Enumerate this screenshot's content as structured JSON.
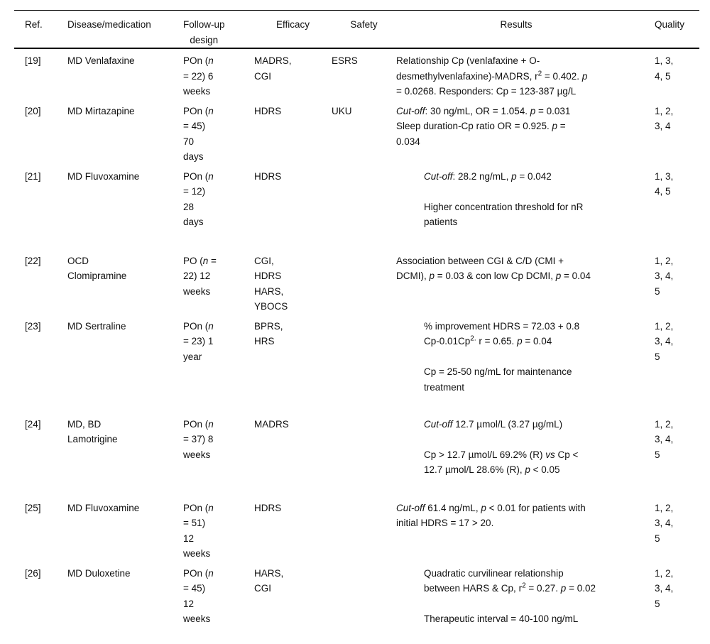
{
  "page": {
    "background_color": "#ffffff",
    "text_color": "#111111",
    "rule_color": "#000000"
  },
  "table": {
    "columns": [
      {
        "key": "ref",
        "lines": [
          "Ref."
        ]
      },
      {
        "key": "disease-medication",
        "lines": [
          "Disease/medication"
        ]
      },
      {
        "key": "followup-design",
        "lines": [
          "Follow-up",
          "design"
        ]
      },
      {
        "key": "efficacy",
        "lines": [
          "Efficacy"
        ]
      },
      {
        "key": "safety",
        "lines": [
          "Safety"
        ]
      },
      {
        "key": "results",
        "lines": [
          "Results"
        ]
      },
      {
        "key": "quality",
        "lines": [
          "Quality"
        ]
      }
    ],
    "rows": [
      {
        "ref": "[19]",
        "disease": [
          {
            "t": "MD Venlafaxine"
          }
        ],
        "followup": [
          {
            "t": "POn ("
          },
          {
            "t": "n",
            "i": true
          },
          {
            "br": true
          },
          {
            "t": "= 22) 6"
          },
          {
            "br": true
          },
          {
            "t": "weeks"
          }
        ],
        "efficacy": [
          {
            "t": "MADRS,"
          },
          {
            "br": true
          },
          {
            "t": "CGI"
          }
        ],
        "safety": [
          {
            "t": "ESRS"
          }
        ],
        "results": {
          "indent": false,
          "segs": [
            {
              "t": "Relationship Cp (venlafaxine + O-"
            },
            {
              "br": true
            },
            {
              "t": "desmethylvenlafaxine)-MADRS, r"
            },
            {
              "t": "2",
              "sup": true
            },
            {
              "t": " = 0.402. "
            },
            {
              "t": "p",
              "i": true
            },
            {
              "br": true
            },
            {
              "t": "= 0.0268. Responders: Cp = 123-387 µg/L"
            }
          ]
        },
        "quality": [
          {
            "t": "1, 3,"
          },
          {
            "br": true
          },
          {
            "t": "4, 5"
          }
        ]
      },
      {
        "ref": "[20]",
        "disease": [
          {
            "t": "MD Mirtazapine"
          }
        ],
        "followup": [
          {
            "t": "POn ("
          },
          {
            "t": "n",
            "i": true
          },
          {
            "br": true
          },
          {
            "t": "= 45)"
          },
          {
            "br": true
          },
          {
            "t": "70"
          },
          {
            "br": true
          },
          {
            "t": "days"
          }
        ],
        "efficacy": [
          {
            "t": "HDRS"
          }
        ],
        "safety": [
          {
            "t": "UKU"
          }
        ],
        "results": {
          "indent": false,
          "segs": [
            {
              "t": "Cut-off",
              "i": true
            },
            {
              "t": ": 30 ng/mL, OR = 1.054. "
            },
            {
              "t": "p",
              "i": true
            },
            {
              "t": " = 0.031"
            },
            {
              "br": true
            },
            {
              "t": "Sleep duration-Cp ratio OR = 0.925. "
            },
            {
              "t": "p",
              "i": true
            },
            {
              "t": " ="
            },
            {
              "br": true
            },
            {
              "t": "0.034"
            }
          ]
        },
        "quality": [
          {
            "t": "1, 2,"
          },
          {
            "br": true
          },
          {
            "t": "3, 4"
          }
        ]
      },
      {
        "ref": "[21]",
        "disease": [
          {
            "t": "MD Fluvoxamine"
          }
        ],
        "followup": [
          {
            "t": "POn ("
          },
          {
            "t": "n",
            "i": true
          },
          {
            "br": true
          },
          {
            "t": "= 12)"
          },
          {
            "br": true
          },
          {
            "t": "28"
          },
          {
            "br": true
          },
          {
            "t": "days"
          }
        ],
        "efficacy": [
          {
            "t": "HDRS"
          }
        ],
        "safety": [],
        "results": {
          "indent": true,
          "segs": [
            {
              "t": "Cut-off",
              "i": true
            },
            {
              "t": ": 28.2 ng/mL, "
            },
            {
              "t": "p",
              "i": true
            },
            {
              "t": " = 0.042"
            },
            {
              "br": true
            },
            {
              "br": true
            },
            {
              "t": "Higher concentration threshold for nR"
            },
            {
              "br": true
            },
            {
              "t": "patients"
            }
          ]
        },
        "quality": [
          {
            "t": "1, 3,"
          },
          {
            "br": true
          },
          {
            "t": "4, 5"
          }
        ]
      },
      {
        "ref": "[22]",
        "disease": [
          {
            "t": "OCD"
          },
          {
            "br": true
          },
          {
            "t": "Clomipramine"
          }
        ],
        "followup": [
          {
            "t": "PO ("
          },
          {
            "t": "n",
            "i": true
          },
          {
            "t": " ="
          },
          {
            "br": true
          },
          {
            "t": "22) 12"
          },
          {
            "br": true
          },
          {
            "t": "weeks"
          }
        ],
        "efficacy": [
          {
            "t": "CGI,"
          },
          {
            "br": true
          },
          {
            "t": "HDRS"
          },
          {
            "br": true
          },
          {
            "t": "HARS,"
          },
          {
            "br": true
          },
          {
            "t": "YBOCS"
          }
        ],
        "safety": [],
        "results": {
          "indent": false,
          "segs": [
            {
              "t": "Association between CGI & C/D (CMI +"
            },
            {
              "br": true
            },
            {
              "t": "DCMI), "
            },
            {
              "t": "p",
              "i": true
            },
            {
              "t": " = 0.03 & con low Cp DCMI, "
            },
            {
              "t": "p",
              "i": true
            },
            {
              "t": " = 0.04"
            }
          ]
        },
        "quality": [
          {
            "t": "1, 2,"
          },
          {
            "br": true
          },
          {
            "t": "3, 4,"
          },
          {
            "br": true
          },
          {
            "t": "5"
          }
        ]
      },
      {
        "ref": "[23]",
        "disease": [
          {
            "t": "MD Sertraline"
          }
        ],
        "followup": [
          {
            "t": "POn ("
          },
          {
            "t": "n",
            "i": true
          },
          {
            "br": true
          },
          {
            "t": "= 23) 1"
          },
          {
            "br": true
          },
          {
            "t": "year"
          }
        ],
        "efficacy": [
          {
            "t": "BPRS,"
          },
          {
            "br": true
          },
          {
            "t": "HRS"
          }
        ],
        "safety": [],
        "results": {
          "indent": true,
          "segs": [
            {
              "t": "% improvement HDRS = 72.03 + 0.8"
            },
            {
              "br": true
            },
            {
              "t": "Cp-0.01Cp"
            },
            {
              "t": "2.",
              "sup": true
            },
            {
              "t": " r = 0.65. "
            },
            {
              "t": "p",
              "i": true
            },
            {
              "t": " = 0.04"
            },
            {
              "br": true
            },
            {
              "br": true
            },
            {
              "t": "Cp = 25-50 ng/mL for maintenance"
            },
            {
              "br": true
            },
            {
              "t": "treatment"
            }
          ]
        },
        "quality": [
          {
            "t": "1, 2,"
          },
          {
            "br": true
          },
          {
            "t": "3, 4,"
          },
          {
            "br": true
          },
          {
            "t": "5"
          }
        ]
      },
      {
        "ref": "[24]",
        "disease": [
          {
            "t": "MD, BD"
          },
          {
            "br": true
          },
          {
            "t": "Lamotrigine"
          }
        ],
        "followup": [
          {
            "t": "POn ("
          },
          {
            "t": "n",
            "i": true
          },
          {
            "br": true
          },
          {
            "t": "= 37) 8"
          },
          {
            "br": true
          },
          {
            "t": "weeks"
          }
        ],
        "efficacy": [
          {
            "t": "MADRS"
          }
        ],
        "safety": [],
        "results": {
          "indent": true,
          "segs": [
            {
              "t": "Cut-off",
              "i": true
            },
            {
              "t": " 12.7 µmol/L (3.27 µg/mL)"
            },
            {
              "br": true
            },
            {
              "br": true
            },
            {
              "t": "Cp > 12.7 µmol/L 69.2% (R) "
            },
            {
              "t": "vs",
              "i": true
            },
            {
              "t": " Cp <"
            },
            {
              "br": true
            },
            {
              "t": "12.7 µmol/L 28.6% (R), "
            },
            {
              "t": "p",
              "i": true
            },
            {
              "t": " < 0.05"
            }
          ]
        },
        "quality": [
          {
            "t": "1, 2,"
          },
          {
            "br": true
          },
          {
            "t": "3, 4,"
          },
          {
            "br": true
          },
          {
            "t": "5"
          }
        ]
      },
      {
        "ref": "[25]",
        "disease": [
          {
            "t": "MD Fluvoxamine"
          }
        ],
        "followup": [
          {
            "t": "POn ("
          },
          {
            "t": "n",
            "i": true
          },
          {
            "br": true
          },
          {
            "t": "= 51)"
          },
          {
            "br": true
          },
          {
            "t": "12"
          },
          {
            "br": true
          },
          {
            "t": "weeks"
          }
        ],
        "efficacy": [
          {
            "t": "HDRS"
          }
        ],
        "safety": [],
        "results": {
          "indent": false,
          "segs": [
            {
              "t": "Cut-off",
              "i": true
            },
            {
              "t": " 61.4 ng/mL, "
            },
            {
              "t": "p",
              "i": true
            },
            {
              "t": " < 0.01 for patients with"
            },
            {
              "br": true
            },
            {
              "t": "initial HDRS = 17 > 20."
            }
          ]
        },
        "quality": [
          {
            "t": "1, 2,"
          },
          {
            "br": true
          },
          {
            "t": "3, 4,"
          },
          {
            "br": true
          },
          {
            "t": "5"
          }
        ]
      },
      {
        "ref": "[26]",
        "disease": [
          {
            "t": "MD Duloxetine"
          }
        ],
        "followup": [
          {
            "t": "POn ("
          },
          {
            "t": "n",
            "i": true
          },
          {
            "br": true
          },
          {
            "t": "= 45)"
          },
          {
            "br": true
          },
          {
            "t": "12"
          },
          {
            "br": true
          },
          {
            "t": "weeks"
          }
        ],
        "efficacy": [
          {
            "t": "HARS,"
          },
          {
            "br": true
          },
          {
            "t": "CGI"
          }
        ],
        "safety": [],
        "results": {
          "indent": true,
          "segs": [
            {
              "t": "Quadratic curvilinear relationship"
            },
            {
              "br": true
            },
            {
              "t": "between HARS & Cp, r"
            },
            {
              "t": "2",
              "sup": true
            },
            {
              "t": " = 0.27. "
            },
            {
              "t": "p",
              "i": true
            },
            {
              "t": " = 0.02"
            },
            {
              "br": true
            },
            {
              "br": true
            },
            {
              "t": "Therapeutic interval = 40-100 ng/mL"
            }
          ]
        },
        "quality": [
          {
            "t": "1, 2,"
          },
          {
            "br": true
          },
          {
            "t": "3, 4,"
          },
          {
            "br": true
          },
          {
            "t": "5"
          }
        ]
      }
    ]
  }
}
